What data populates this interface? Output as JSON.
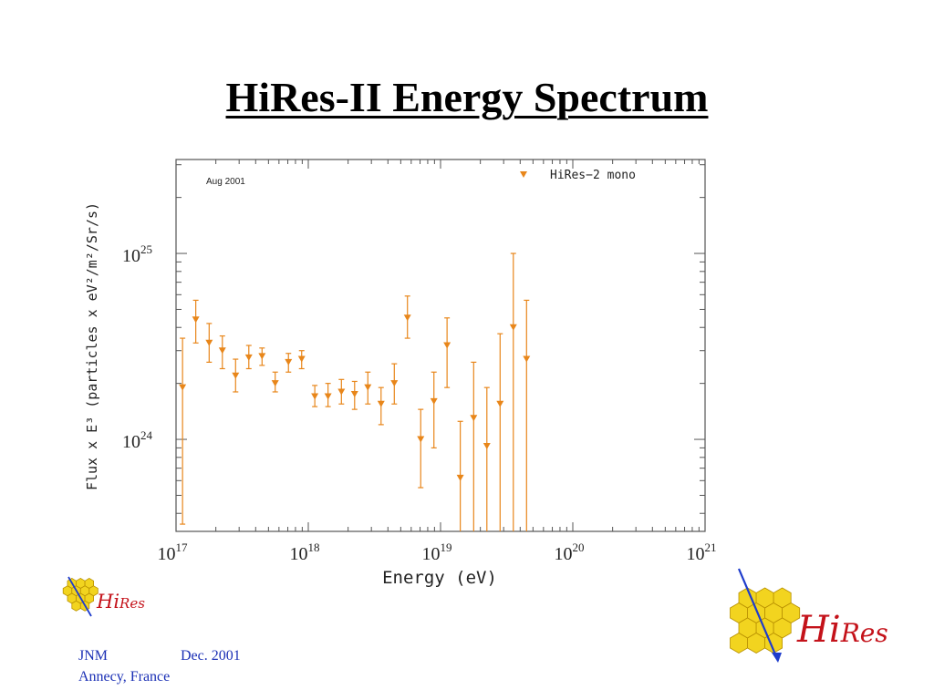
{
  "slide": {
    "title": "HiRes-II Energy Spectrum"
  },
  "footer": {
    "author": "JNM",
    "date": "Dec. 2001",
    "location": "Annecy, France"
  },
  "logos": {
    "text_prefix": "Hi",
    "text_suffix": "Res",
    "colors": {
      "hexagon": "#f2d41f",
      "hexagon_stroke": "#b89000",
      "arrow": "#1e3ccc",
      "text": "#c4121a"
    }
  },
  "chart_data": {
    "type": "scatter",
    "annotation": "Aug 2001",
    "xlabel": "Energy (eV)",
    "ylabel": "Flux x E³ (particles x eV²/m²/Sr/s)",
    "x_scale": "log",
    "y_scale": "log",
    "xlim": [
      1e+17,
      1e+21
    ],
    "ylim": [
      3.2e+23,
      3.2e+25
    ],
    "x_ticks": [
      {
        "value": 1e+17,
        "base": "10",
        "exp": "17"
      },
      {
        "value": 1e+18,
        "base": "10",
        "exp": "18"
      },
      {
        "value": 1e+19,
        "base": "10",
        "exp": "19"
      },
      {
        "value": 1e+20,
        "base": "10",
        "exp": "20"
      },
      {
        "value": 1e+21,
        "base": "10",
        "exp": "21"
      }
    ],
    "y_ticks": [
      {
        "value": 1e+24,
        "base": "10",
        "exp": "24"
      },
      {
        "value": 1e+25,
        "base": "10",
        "exp": "25"
      }
    ],
    "legend": {
      "label": "HiRes−2 mono",
      "position": "top-right",
      "marker": "triangle-down"
    },
    "grid": false,
    "color": "#e8861a",
    "series": [
      {
        "name": "HiRes−2 mono",
        "points": [
          {
            "x": 1.12e+17,
            "y": 1.9e+24,
            "ylo": 3.5e+23,
            "yhi": 3.5e+24
          },
          {
            "x": 1.41e+17,
            "y": 4.4e+24,
            "ylo": 3.3e+24,
            "yhi": 5.6e+24
          },
          {
            "x": 1.78e+17,
            "y": 3.3e+24,
            "ylo": 2.6e+24,
            "yhi": 4.2e+24
          },
          {
            "x": 2.24e+17,
            "y": 3e+24,
            "ylo": 2.4e+24,
            "yhi": 3.6e+24
          },
          {
            "x": 2.82e+17,
            "y": 2.2e+24,
            "ylo": 1.8e+24,
            "yhi": 2.7e+24
          },
          {
            "x": 3.55e+17,
            "y": 2.75e+24,
            "ylo": 2.4e+24,
            "yhi": 3.2e+24
          },
          {
            "x": 4.47e+17,
            "y": 2.8e+24,
            "ylo": 2.5e+24,
            "yhi": 3.1e+24
          },
          {
            "x": 5.62e+17,
            "y": 2e+24,
            "ylo": 1.8e+24,
            "yhi": 2.3e+24
          },
          {
            "x": 7.08e+17,
            "y": 2.6e+24,
            "ylo": 2.3e+24,
            "yhi": 2.9e+24
          },
          {
            "x": 8.91e+17,
            "y": 2.7e+24,
            "ylo": 2.4e+24,
            "yhi": 3e+24
          },
          {
            "x": 1.12e+18,
            "y": 1.7e+24,
            "ylo": 1.5e+24,
            "yhi": 1.95e+24
          },
          {
            "x": 1.41e+18,
            "y": 1.7e+24,
            "ylo": 1.5e+24,
            "yhi": 2e+24
          },
          {
            "x": 1.78e+18,
            "y": 1.8e+24,
            "ylo": 1.55e+24,
            "yhi": 2.1e+24
          },
          {
            "x": 2.24e+18,
            "y": 1.75e+24,
            "ylo": 1.45e+24,
            "yhi": 2.05e+24
          },
          {
            "x": 2.82e+18,
            "y": 1.9e+24,
            "ylo": 1.55e+24,
            "yhi": 2.3e+24
          },
          {
            "x": 3.55e+18,
            "y": 1.55e+24,
            "ylo": 1.2e+24,
            "yhi": 1.9e+24
          },
          {
            "x": 4.47e+18,
            "y": 2e+24,
            "ylo": 1.55e+24,
            "yhi": 2.55e+24
          },
          {
            "x": 5.62e+18,
            "y": 4.5e+24,
            "ylo": 3.5e+24,
            "yhi": 5.9e+24
          },
          {
            "x": 7.08e+18,
            "y": 1e+24,
            "ylo": 5.5e+23,
            "yhi": 1.45e+24
          },
          {
            "x": 8.91e+18,
            "y": 1.6e+24,
            "ylo": 9e+23,
            "yhi": 2.3e+24
          },
          {
            "x": 1.12e+19,
            "y": 3.2e+24,
            "ylo": 1.9e+24,
            "yhi": 4.5e+24
          },
          {
            "x": 1.41e+19,
            "y": 6.2e+23,
            "ylo": 3.2e+23,
            "yhi": 1.25e+24
          },
          {
            "x": 1.78e+19,
            "y": 1.3e+24,
            "ylo": 3.2e+23,
            "yhi": 2.6e+24
          },
          {
            "x": 2.24e+19,
            "y": 9.2e+23,
            "ylo": 3.2e+23,
            "yhi": 1.9e+24
          },
          {
            "x": 2.82e+19,
            "y": 1.55e+24,
            "ylo": 3.2e+23,
            "yhi": 3.7e+24
          },
          {
            "x": 3.55e+19,
            "y": 4e+24,
            "ylo": 3.2e+23,
            "yhi": 1e+25
          },
          {
            "x": 4.47e+19,
            "y": 2.7e+24,
            "ylo": 3.2e+23,
            "yhi": 5.6e+24
          }
        ]
      }
    ]
  }
}
